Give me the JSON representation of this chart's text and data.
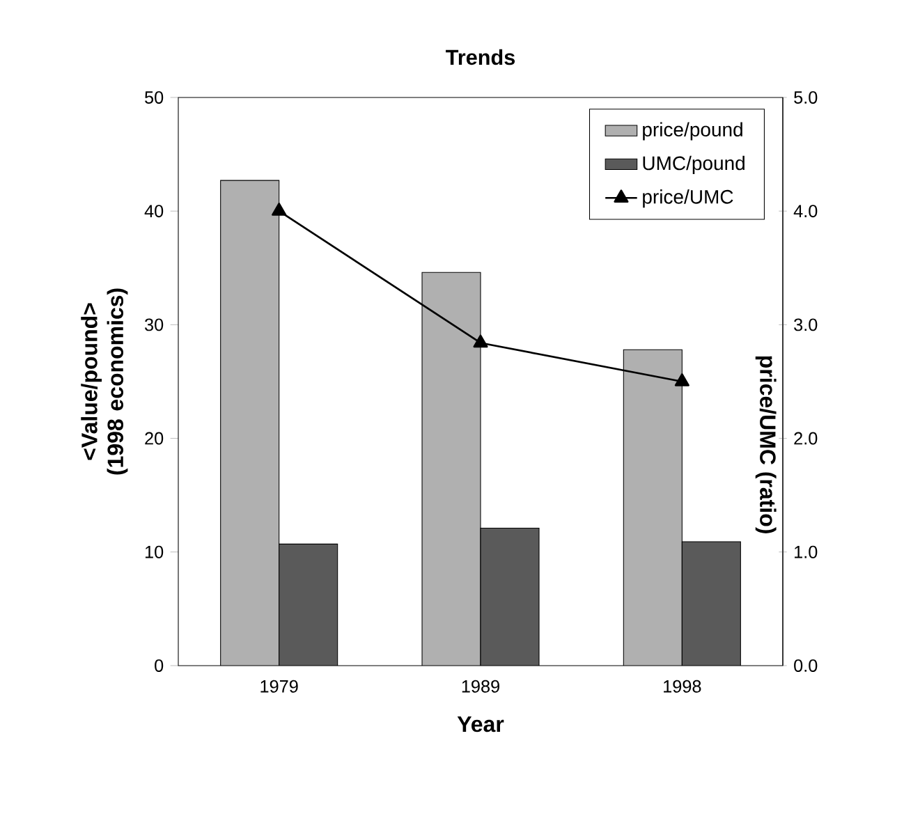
{
  "chart_data": {
    "type": "bar",
    "title": "Trends",
    "xlabel": "Year",
    "ylabel": "<Value/pound> (1998 economics)",
    "y2label": "price/UMC (ratio)",
    "categories": [
      "1979",
      "1989",
      "1998"
    ],
    "series": [
      {
        "name": "price/pound",
        "color": "#b0b0b0",
        "values": [
          42.7,
          34.6,
          27.8
        ]
      },
      {
        "name": "UMC/pound",
        "color": "#5a5a5a",
        "values": [
          10.7,
          12.1,
          10.9
        ]
      },
      {
        "name": "price/UMC",
        "type": "line",
        "axis": "y2",
        "color": "#000000",
        "marker": "triangle",
        "line_style": "solid",
        "values": [
          4.0,
          2.84,
          2.5
        ]
      }
    ],
    "ylim": [
      0,
      50
    ],
    "yticks": [
      0,
      10,
      20,
      30,
      40,
      50
    ],
    "y2lim": [
      0,
      5
    ],
    "y2ticks": [
      {
        "value": 0,
        "label": "0.0"
      },
      {
        "value": 1,
        "label": "1.0"
      },
      {
        "value": 2,
        "label": "2.0"
      },
      {
        "value": 3,
        "label": "3.0"
      },
      {
        "value": 4,
        "label": "4.0"
      },
      {
        "value": 5,
        "label": "5.0"
      }
    ],
    "grid": false,
    "legend": "top right"
  }
}
